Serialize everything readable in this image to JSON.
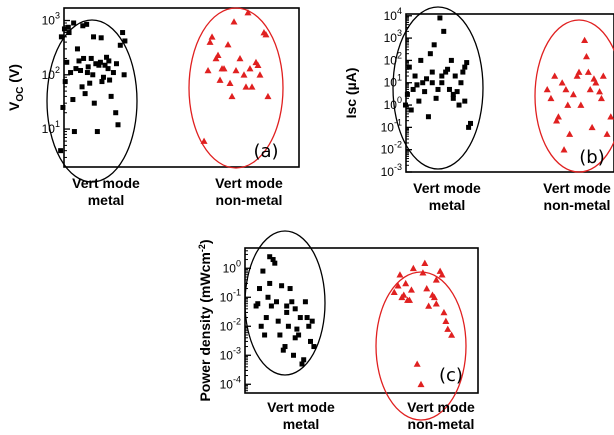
{
  "chart_data": [
    {
      "type": "scatter",
      "panel_label": "(a)",
      "ylabel": "V_OC (V)",
      "y_scale": "log",
      "ylim": [
        2,
        1700
      ],
      "yticks": [
        {
          "v": 10,
          "exp": "1"
        },
        {
          "v": 100,
          "exp": "2"
        },
        {
          "v": 1000,
          "exp": "3"
        }
      ],
      "categories": [
        "Vert mode\nmetal",
        "Vert mode\nnon-metal"
      ],
      "series": [
        {
          "color": "#000000",
          "marker": "square",
          "category": 0,
          "x": [
            -0.82,
            -0.76,
            -0.7,
            -0.66,
            -0.6,
            -0.56,
            -0.5,
            -0.46,
            -0.42,
            -0.38,
            -0.34,
            -0.3,
            -0.26,
            -0.22,
            -0.18,
            -0.14,
            -0.1,
            -0.06,
            -0.02,
            0.02,
            0.06,
            0.1,
            0.14,
            0.18,
            0.22,
            0.26,
            0.3,
            0.34,
            0.38,
            0.42,
            0.46,
            0.5,
            0.56,
            0.62,
            0.68,
            0.74,
            0.8,
            0.86,
            -0.8,
            -0.62,
            -0.48,
            -0.24,
            0.04,
            0.24,
            0.44,
            0.64,
            0.84,
            -0.72,
            -0.12
          ],
          "y": [
            4,
            25,
            75,
            170,
            600,
            110,
            35,
            9,
            130,
            300,
            180,
            120,
            60,
            200,
            45,
            850,
            140,
            70,
            200,
            100,
            30,
            160,
            9,
            150,
            170,
            75,
            90,
            150,
            210,
            130,
            80,
            40,
            110,
            20,
            12,
            350,
            600,
            420,
            500,
            750,
            900,
            800,
            500,
            480,
            180,
            160,
            100,
            700,
            110
          ]
        },
        {
          "color": "#e02020",
          "marker": "triangle",
          "category": 1,
          "x": [
            -0.8,
            -0.7,
            -0.6,
            -0.5,
            -0.4,
            -0.3,
            -0.2,
            -0.1,
            0.0,
            0.1,
            0.2,
            0.3,
            0.4,
            0.5,
            0.6,
            0.7,
            0.8,
            -0.65,
            -0.35,
            -0.05,
            0.25,
            0.55,
            -0.45,
            0.35,
            0.75,
            -0.15
          ],
          "y": [
            6,
            120,
            500,
            200,
            80,
            130,
            360,
            40,
            120,
            200,
            100,
            1400,
            60,
            170,
            100,
            600,
            40,
            400,
            130,
            950,
            60,
            150,
            230,
            130,
            550,
            70
          ]
        }
      ]
    },
    {
      "type": "scatter",
      "panel_label": "(b)",
      "ylabel": "Isc (µA)",
      "y_scale": "log",
      "ylim": [
        0.001,
        12000
      ],
      "yticks": [
        {
          "v": 0.001,
          "exp": "-3"
        },
        {
          "v": 0.01,
          "exp": "-2"
        },
        {
          "v": 0.1,
          "exp": "-1"
        },
        {
          "v": 1,
          "exp": "0"
        },
        {
          "v": 10,
          "exp": "1"
        },
        {
          "v": 100,
          "exp": "2"
        },
        {
          "v": 1000,
          "exp": "3"
        },
        {
          "v": 10000,
          "exp": "4"
        }
      ],
      "categories": [
        "Vert mode\nmetal",
        "Vert mode\nnon-metal"
      ],
      "series": [
        {
          "color": "#000000",
          "marker": "square",
          "category": 0,
          "x": [
            -0.85,
            -0.8,
            -0.75,
            -0.7,
            -0.65,
            -0.6,
            -0.55,
            -0.5,
            -0.45,
            -0.4,
            -0.35,
            -0.3,
            -0.25,
            -0.2,
            -0.15,
            -0.1,
            -0.05,
            0.0,
            0.05,
            0.1,
            0.15,
            0.2,
            0.25,
            0.3,
            0.35,
            0.4,
            0.45,
            0.5,
            0.55,
            0.6,
            0.65,
            0.7,
            0.75,
            0.8,
            0.85,
            -0.55,
            -0.15,
            0.1,
            0.4,
            0.7
          ],
          "y": [
            1,
            3,
            50,
            0.6,
            5,
            20,
            8,
            1.5,
            100,
            10,
            4,
            15,
            0.3,
            200,
            30,
            500,
            2,
            5,
            8000,
            10,
            2000,
            30,
            40,
            5,
            100,
            3,
            20,
            4,
            1,
            10,
            30,
            1.5,
            80,
            0.1,
            0.15,
            8,
            10,
            20,
            2,
            50
          ]
        },
        {
          "color": "#e02020",
          "marker": "triangle",
          "category": 1,
          "x": [
            -0.85,
            -0.75,
            -0.65,
            -0.55,
            -0.45,
            -0.35,
            -0.25,
            -0.15,
            -0.05,
            0.05,
            0.15,
            0.25,
            0.35,
            0.45,
            0.55,
            0.65,
            0.75,
            0.85,
            -0.6,
            -0.3,
            0.0,
            0.3,
            0.6,
            -0.4,
            0.4,
            0.2
          ],
          "y": [
            5,
            2,
            20,
            0.3,
            10,
            5,
            0.05,
            3,
            20,
            1,
            800,
            30,
            0.1,
            10,
            4,
            20,
            0.05,
            0.3,
            0.2,
            1,
            30,
            5,
            2,
            0.01,
            15,
            150
          ]
        }
      ]
    },
    {
      "type": "scatter",
      "panel_label": "(c)",
      "ylabel": "Power density (mWcm-2)",
      "y_scale": "log",
      "ylim": [
        5e-05,
        5
      ],
      "yticks": [
        {
          "v": 0.0001,
          "exp": "-4"
        },
        {
          "v": 0.001,
          "exp": "-3"
        },
        {
          "v": 0.01,
          "exp": "-2"
        },
        {
          "v": 0.1,
          "exp": "-1"
        },
        {
          "v": 1,
          "exp": "0"
        }
      ],
      "categories": [
        "Vert mode\nmetal",
        "Vert mode\nnon-metal"
      ],
      "series": [
        {
          "color": "#000000",
          "marker": "square",
          "category": 0,
          "x": [
            -0.85,
            -0.8,
            -0.75,
            -0.7,
            -0.65,
            -0.6,
            -0.55,
            -0.5,
            -0.45,
            -0.4,
            -0.35,
            -0.3,
            -0.25,
            -0.2,
            -0.15,
            -0.1,
            -0.05,
            0.0,
            0.05,
            0.1,
            0.15,
            0.2,
            0.25,
            0.3,
            0.35,
            0.4,
            0.45,
            0.5,
            0.55,
            0.6,
            0.65,
            0.7,
            0.75,
            0.8,
            0.85,
            -0.45,
            0.05,
            0.3
          ],
          "y": [
            0.05,
            0.06,
            0.2,
            0.01,
            0.8,
            0.005,
            0.02,
            0.1,
            0.3,
            0.05,
            2,
            1.5,
            0.07,
            0.015,
            0.005,
            0.25,
            0.0015,
            0.002,
            0.05,
            0.01,
            0.2,
            0.07,
            0.001,
            0.004,
            0.008,
            0.005,
            0.02,
            0.0005,
            0.0007,
            0.07,
            0.02,
            0.01,
            0.003,
            0.015,
            0.002,
            2.5,
            0.03,
            0.04
          ]
        },
        {
          "color": "#e02020",
          "marker": "triangle",
          "category": 1,
          "x": [
            -0.7,
            -0.6,
            -0.5,
            -0.4,
            -0.3,
            -0.2,
            -0.1,
            0.0,
            0.1,
            0.2,
            0.3,
            0.4,
            0.5,
            0.6,
            0.7,
            0.8,
            -0.55,
            -0.25,
            0.05,
            0.35,
            0.65,
            -0.45,
            0.4,
            -0.35,
            0.15,
            0.55
          ],
          "y": [
            0.15,
            0.25,
            0.1,
            0.3,
            0.08,
            1,
            0.0005,
            0.0001,
            1.5,
            0.05,
            0.12,
            0.4,
            0.8,
            0.03,
            0.008,
            0.005,
            0.6,
            0.18,
            0.7,
            0.1,
            0.015,
            0.12,
            0.06,
            0.08,
            0.2,
            0.6
          ]
        }
      ]
    }
  ]
}
